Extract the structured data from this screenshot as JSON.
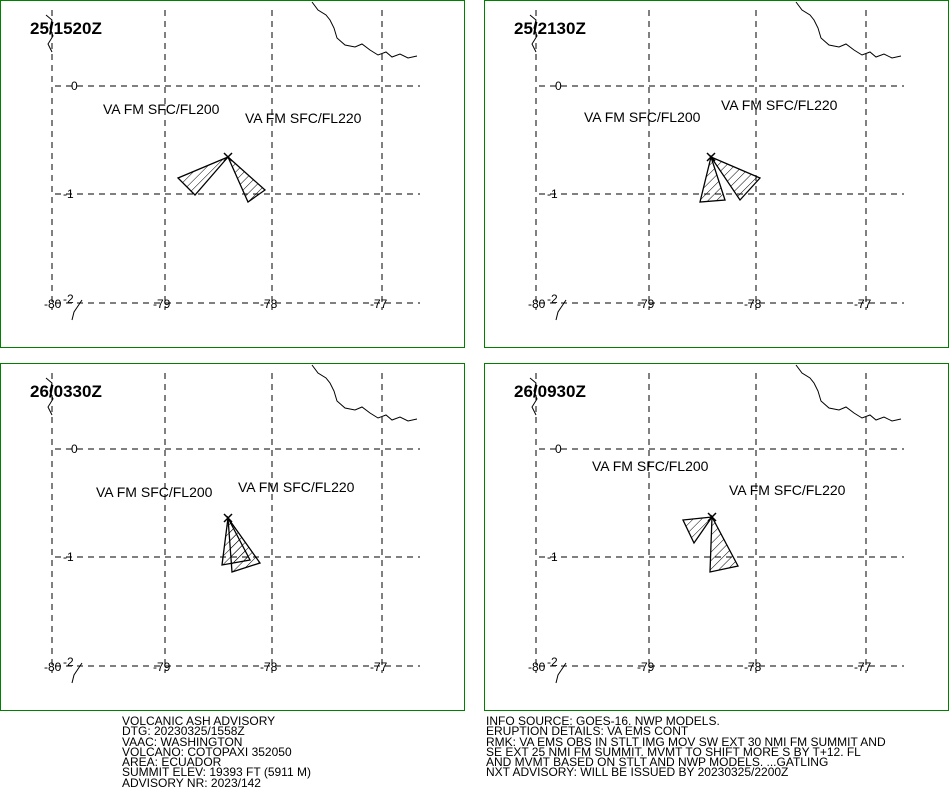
{
  "grid": {
    "lat_labels": [
      "0",
      "-1",
      "-2"
    ],
    "lon_labels": [
      "-80",
      "-79",
      "-78",
      "-77"
    ]
  },
  "panels": [
    {
      "time": "25/1520Z",
      "labels": [
        "VA FM SFC/FL200",
        "VA FM SFC/FL220"
      ]
    },
    {
      "time": "25/2130Z",
      "labels": [
        "VA FM SFC/FL200",
        "VA FM SFC/FL220"
      ]
    },
    {
      "time": "26/0330Z",
      "labels": [
        "VA FM SFC/FL200",
        "VA FM SFC/FL220"
      ]
    },
    {
      "time": "26/0930Z",
      "labels": [
        "VA FM SFC/FL200",
        "VA FM SFC/FL220"
      ]
    }
  ],
  "advisory": {
    "left": [
      "VOLCANIC ASH ADVISORY",
      "DTG: 20230325/1558Z",
      "VAAC: WASHINGTON",
      "VOLCANO: COTOPAXI 352050",
      "AREA: ECUADOR",
      "SUMMIT ELEV: 19393 FT (5911 M)",
      "ADVISORY NR: 2023/142"
    ],
    "right": [
      "INFO SOURCE: GOES-16. NWP MODELS.",
      "ERUPTION DETAILS: VA EMS CONT",
      "RMK: VA EMS OBS IN STLT IMG MOV SW EXT 30 NMI FM SUMMIT AND",
      "SE EXT 25 NMI FM SUMMIT. MVMT TO SHIFT MORE S BY T+12. FL",
      "AND MVMT BASED ON STLT AND NWP MODELS. ...GATLING",
      "NXT ADVISORY: WILL BE ISSUED BY 20230325/2200Z"
    ]
  }
}
